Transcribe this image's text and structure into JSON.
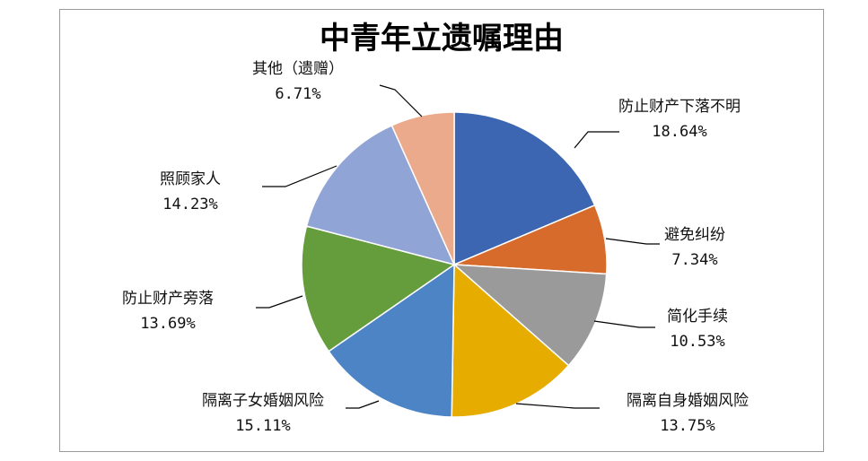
{
  "chart_data": {
    "type": "pie",
    "title": "中青年立遗嘱理由",
    "slices": [
      {
        "label": "防止财产下落不明",
        "value": 18.64,
        "display": "18.64%",
        "color": "#3c66b1"
      },
      {
        "label": "避免纠纷",
        "value": 7.34,
        "display": "7.34%",
        "color": "#d76b2c"
      },
      {
        "label": "简化手续",
        "value": 10.53,
        "display": "10.53%",
        "color": "#9a9a9a"
      },
      {
        "label": "隔离自身婚姻风险",
        "value": 13.75,
        "display": "13.75%",
        "color": "#e7ac00"
      },
      {
        "label": "隔离子女婚姻风险",
        "value": 15.11,
        "display": "15.11%",
        "color": "#4c84c6"
      },
      {
        "label": "防止财产旁落",
        "value": 13.69,
        "display": "13.69%",
        "color": "#659c3c"
      },
      {
        "label": "照顾家人",
        "value": 14.23,
        "display": "14.23%",
        "color": "#91a4d6"
      },
      {
        "label": "其他（遗赠）",
        "value": 6.71,
        "display": "6.71%",
        "color": "#ecaa8c"
      }
    ]
  }
}
